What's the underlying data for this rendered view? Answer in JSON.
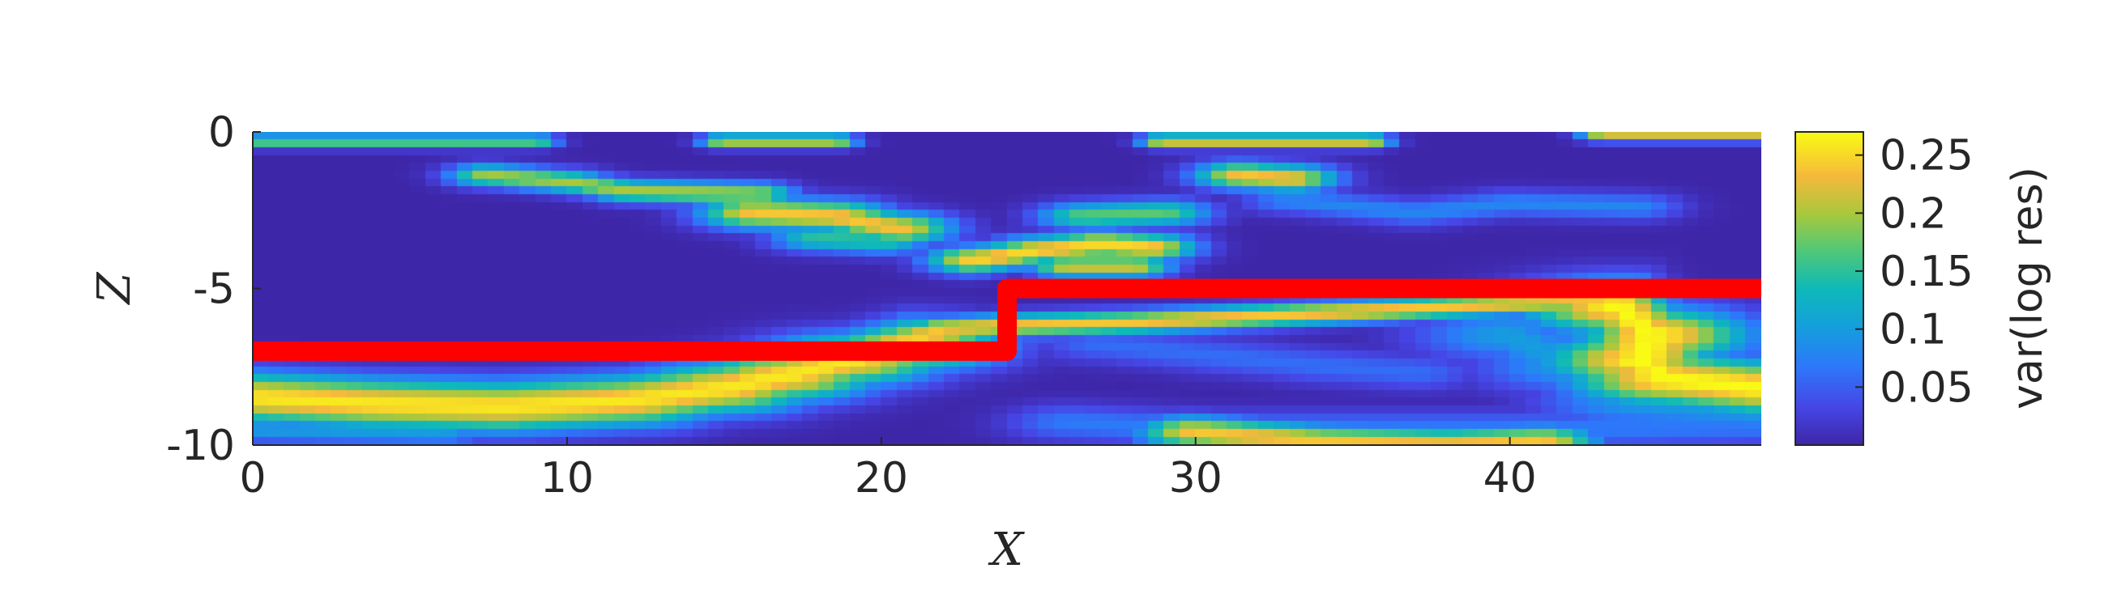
{
  "chart_data": {
    "type": "heatmap",
    "xlabel": "X",
    "ylabel": "Z",
    "xlim": [
      0,
      48
    ],
    "ylim": [
      -10,
      0
    ],
    "x_ticks": [
      "0",
      "10",
      "20",
      "30",
      "40"
    ],
    "x_tick_values": [
      0,
      10,
      20,
      30,
      40
    ],
    "y_ticks": [
      "0",
      "-5",
      "-10"
    ],
    "y_tick_values": [
      0,
      -5,
      -10
    ],
    "colorbar": {
      "label": "var(log res)",
      "range": [
        0,
        0.27
      ],
      "ticks": [
        "0.05",
        "0.1",
        "0.15",
        "0.2",
        "0.25"
      ],
      "tick_values": [
        0.05,
        0.1,
        0.15,
        0.2,
        0.25
      ],
      "colormap": "parula"
    },
    "background_value": 0.0,
    "features": [
      {
        "name": "surface-band",
        "points": [
          [
            0,
            -0.3
          ],
          [
            1.5,
            -0.3
          ],
          [
            5,
            -0.3
          ],
          [
            9,
            -0.3
          ]
        ],
        "width": 0.15,
        "peak": 0.18
      },
      {
        "name": "surface-band-2",
        "points": [
          [
            15,
            -0.3
          ],
          [
            18.5,
            -0.3
          ]
        ],
        "width": 0.15,
        "peak": 0.22
      },
      {
        "name": "surface-band-3",
        "points": [
          [
            29,
            -0.3
          ],
          [
            35.5,
            -0.3
          ]
        ],
        "width": 0.15,
        "peak": 0.24
      },
      {
        "name": "surface-band-4",
        "points": [
          [
            43,
            -0.1
          ],
          [
            48,
            -0.1
          ]
        ],
        "width": 0.15,
        "peak": 0.22
      },
      {
        "name": "shallow-streak-1",
        "points": [
          [
            7.5,
            -1.4
          ],
          [
            10,
            -1.6
          ],
          [
            12,
            -1.9
          ],
          [
            16,
            -2.0
          ]
        ],
        "width": 0.25,
        "peak": 0.2
      },
      {
        "name": "shallow-streak-2",
        "points": [
          [
            16,
            -2.6
          ],
          [
            18.5,
            -2.7
          ],
          [
            20.5,
            -3.1
          ]
        ],
        "width": 0.35,
        "peak": 0.24
      },
      {
        "name": "shallow-streak-3",
        "points": [
          [
            18,
            -3.4
          ],
          [
            20,
            -3.5
          ]
        ],
        "width": 0.3,
        "peak": 0.15
      },
      {
        "name": "mid-streak-1",
        "points": [
          [
            23,
            -4.1
          ],
          [
            25,
            -3.8
          ],
          [
            27,
            -3.6
          ],
          [
            28.5,
            -3.7
          ]
        ],
        "width": 0.3,
        "peak": 0.25
      },
      {
        "name": "mid-streak-2",
        "points": [
          [
            26,
            -4.3
          ],
          [
            28,
            -4.3
          ]
        ],
        "width": 0.25,
        "peak": 0.22
      },
      {
        "name": "mid-streak-3",
        "points": [
          [
            26.5,
            -2.7
          ],
          [
            29,
            -2.6
          ]
        ],
        "width": 0.3,
        "peak": 0.17
      },
      {
        "name": "mid-streak-4",
        "points": [
          [
            31.5,
            -1.4
          ],
          [
            33,
            -1.5
          ]
        ],
        "width": 0.3,
        "peak": 0.24
      },
      {
        "name": "faint-streak-5",
        "points": [
          [
            33,
            -2.2
          ],
          [
            37,
            -2.6
          ],
          [
            40,
            -2.3
          ],
          [
            44,
            -2.4
          ]
        ],
        "width": 0.3,
        "peak": 0.08
      },
      {
        "name": "layer-interface",
        "points": [
          [
            20,
            -6.8
          ],
          [
            22,
            -6.3
          ],
          [
            24,
            -6.2
          ],
          [
            28,
            -6.1
          ],
          [
            32,
            -5.9
          ],
          [
            36,
            -5.7
          ],
          [
            40,
            -5.5
          ],
          [
            43,
            -5.4
          ]
        ],
        "width": 0.25,
        "peak": 0.24
      },
      {
        "name": "deep-body-left",
        "points": [
          [
            0,
            -8.5
          ],
          [
            4,
            -8.7
          ],
          [
            8,
            -8.8
          ],
          [
            12,
            -8.6
          ],
          [
            15,
            -8.2
          ],
          [
            17,
            -7.8
          ],
          [
            19,
            -7.3
          ],
          [
            21,
            -6.8
          ]
        ],
        "width": 0.55,
        "peak": 0.26
      },
      {
        "name": "deep-body-left-lower",
        "points": [
          [
            0,
            -9.5
          ],
          [
            6,
            -9.6
          ]
        ],
        "width": 0.3,
        "peak": 0.1
      },
      {
        "name": "right-plume",
        "points": [
          [
            43.5,
            -5.6
          ],
          [
            44.5,
            -6.5
          ],
          [
            44.2,
            -7.3
          ],
          [
            45,
            -7.9
          ],
          [
            48,
            -8.2
          ]
        ],
        "width": 0.6,
        "peak": 0.27
      },
      {
        "name": "right-halo",
        "points": [
          [
            40,
            -6.5
          ],
          [
            42,
            -7.5
          ],
          [
            44,
            -8.6
          ],
          [
            48,
            -8.9
          ]
        ],
        "width": 0.6,
        "peak": 0.1
      },
      {
        "name": "bottom-band",
        "points": [
          [
            30,
            -9.6
          ],
          [
            34,
            -9.9
          ],
          [
            38,
            -10
          ],
          [
            41,
            -9.9
          ]
        ],
        "width": 0.35,
        "peak": 0.24
      },
      {
        "name": "bottom-faint",
        "points": [
          [
            26,
            -9.3
          ],
          [
            30,
            -9.5
          ],
          [
            43,
            -9.5
          ],
          [
            48,
            -9.4
          ]
        ],
        "width": 0.4,
        "peak": 0.07
      },
      {
        "name": "mid-faint",
        "points": [
          [
            27,
            -6.8
          ],
          [
            31,
            -7.2
          ],
          [
            34,
            -7.5
          ],
          [
            37,
            -7.7
          ]
        ],
        "width": 0.4,
        "peak": 0.06
      }
    ],
    "boundary_line": {
      "color": "#ff0000",
      "points": [
        [
          0,
          -7.0
        ],
        [
          24,
          -7.0
        ],
        [
          24,
          -5.0
        ],
        [
          48,
          -5.0
        ]
      ]
    }
  },
  "colors": {
    "background": "#ffffff",
    "axis": "#262626",
    "boundary": "#ff0000"
  }
}
